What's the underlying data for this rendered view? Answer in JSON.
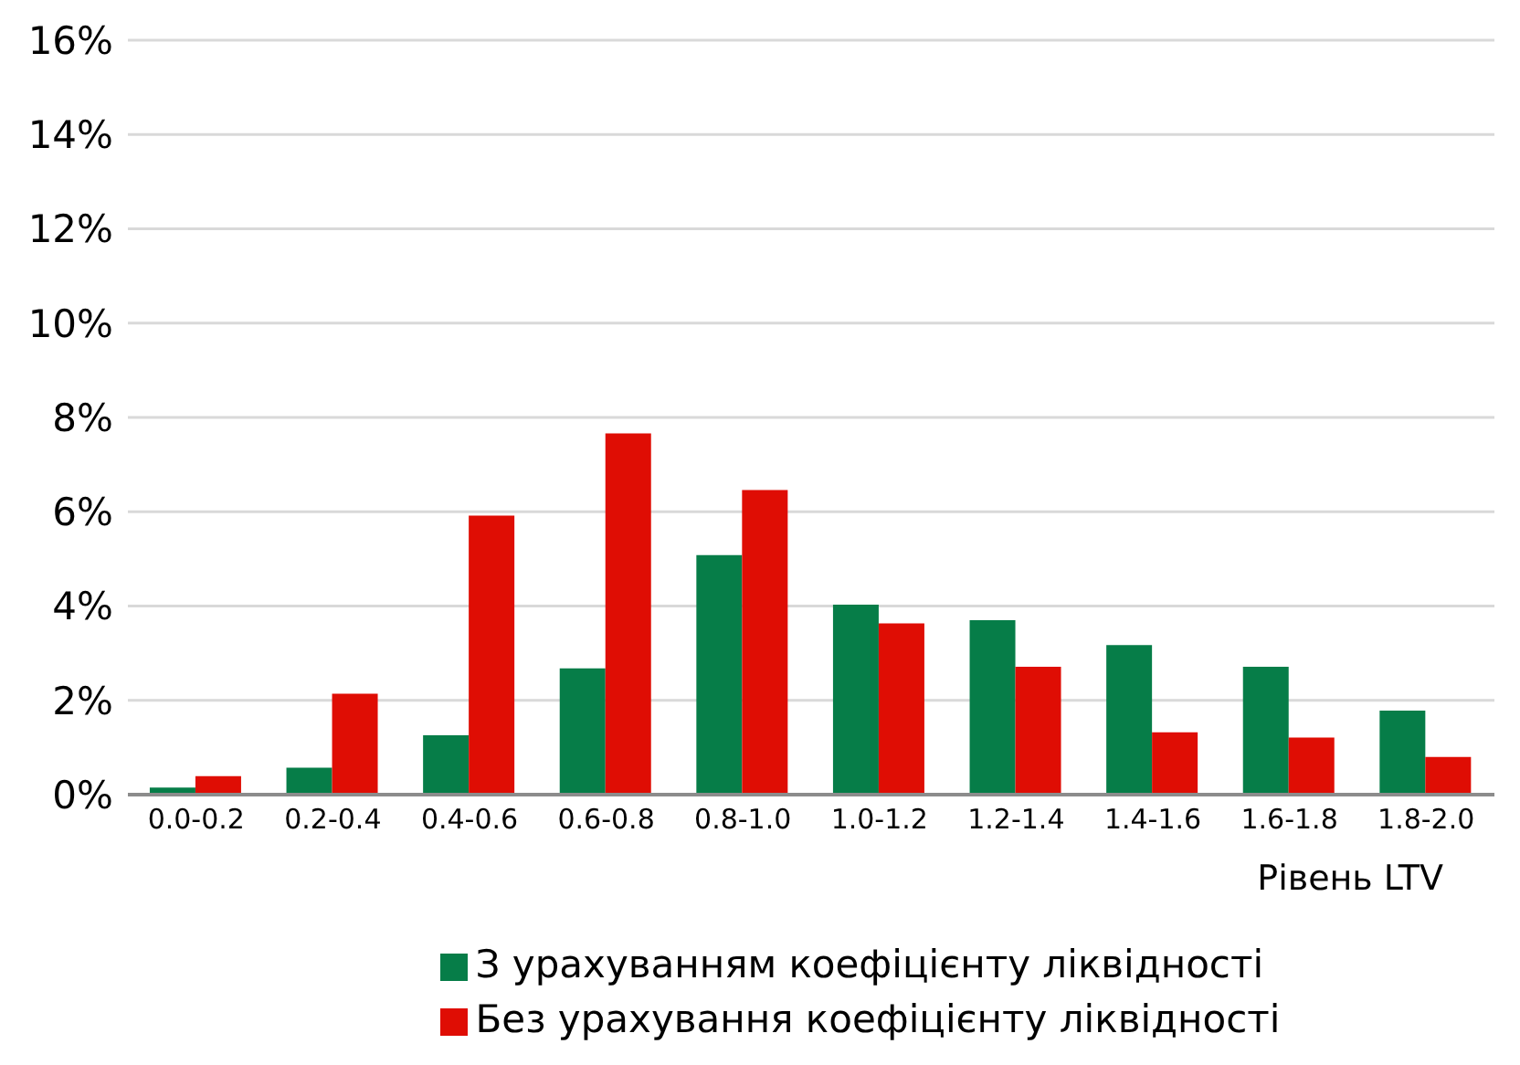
{
  "chart_data": {
    "type": "bar",
    "xlabel": "Рівень LTV",
    "categories": [
      "0.0-0.2",
      "0.2-0.4",
      "0.4-0.6",
      "0.6-0.8",
      "0.8-1.0",
      "1.0-1.2",
      "1.2-1.4",
      "1.4-1.6",
      "1.6-1.8",
      "1.8-2.0"
    ],
    "series": [
      {
        "name": "З урахуванням коефіцієнту ліквідності",
        "color": "#067d48",
        "values": [
          0.15,
          0.57,
          1.26,
          2.68,
          5.08,
          4.03,
          3.7,
          3.17,
          2.71,
          1.78
        ]
      },
      {
        "name": "Без урахування коефіцієнту ліквідності",
        "color": "#df0d04",
        "values": [
          0.39,
          2.14,
          5.92,
          7.66,
          6.46,
          3.63,
          2.71,
          1.32,
          1.21,
          0.8
        ]
      }
    ],
    "ylim": [
      0,
      16
    ],
    "yticks": [
      {
        "value": 0,
        "label": "0%"
      },
      {
        "value": 2,
        "label": "2%"
      },
      {
        "value": 4,
        "label": "4%"
      },
      {
        "value": 6,
        "label": "6%"
      },
      {
        "value": 8,
        "label": "8%"
      },
      {
        "value": 10,
        "label": "10%"
      },
      {
        "value": 12,
        "label": "12%"
      },
      {
        "value": 14,
        "label": "14%"
      },
      {
        "value": 16,
        "label": "16%"
      }
    ],
    "grid": "y",
    "legend": "bottom"
  }
}
